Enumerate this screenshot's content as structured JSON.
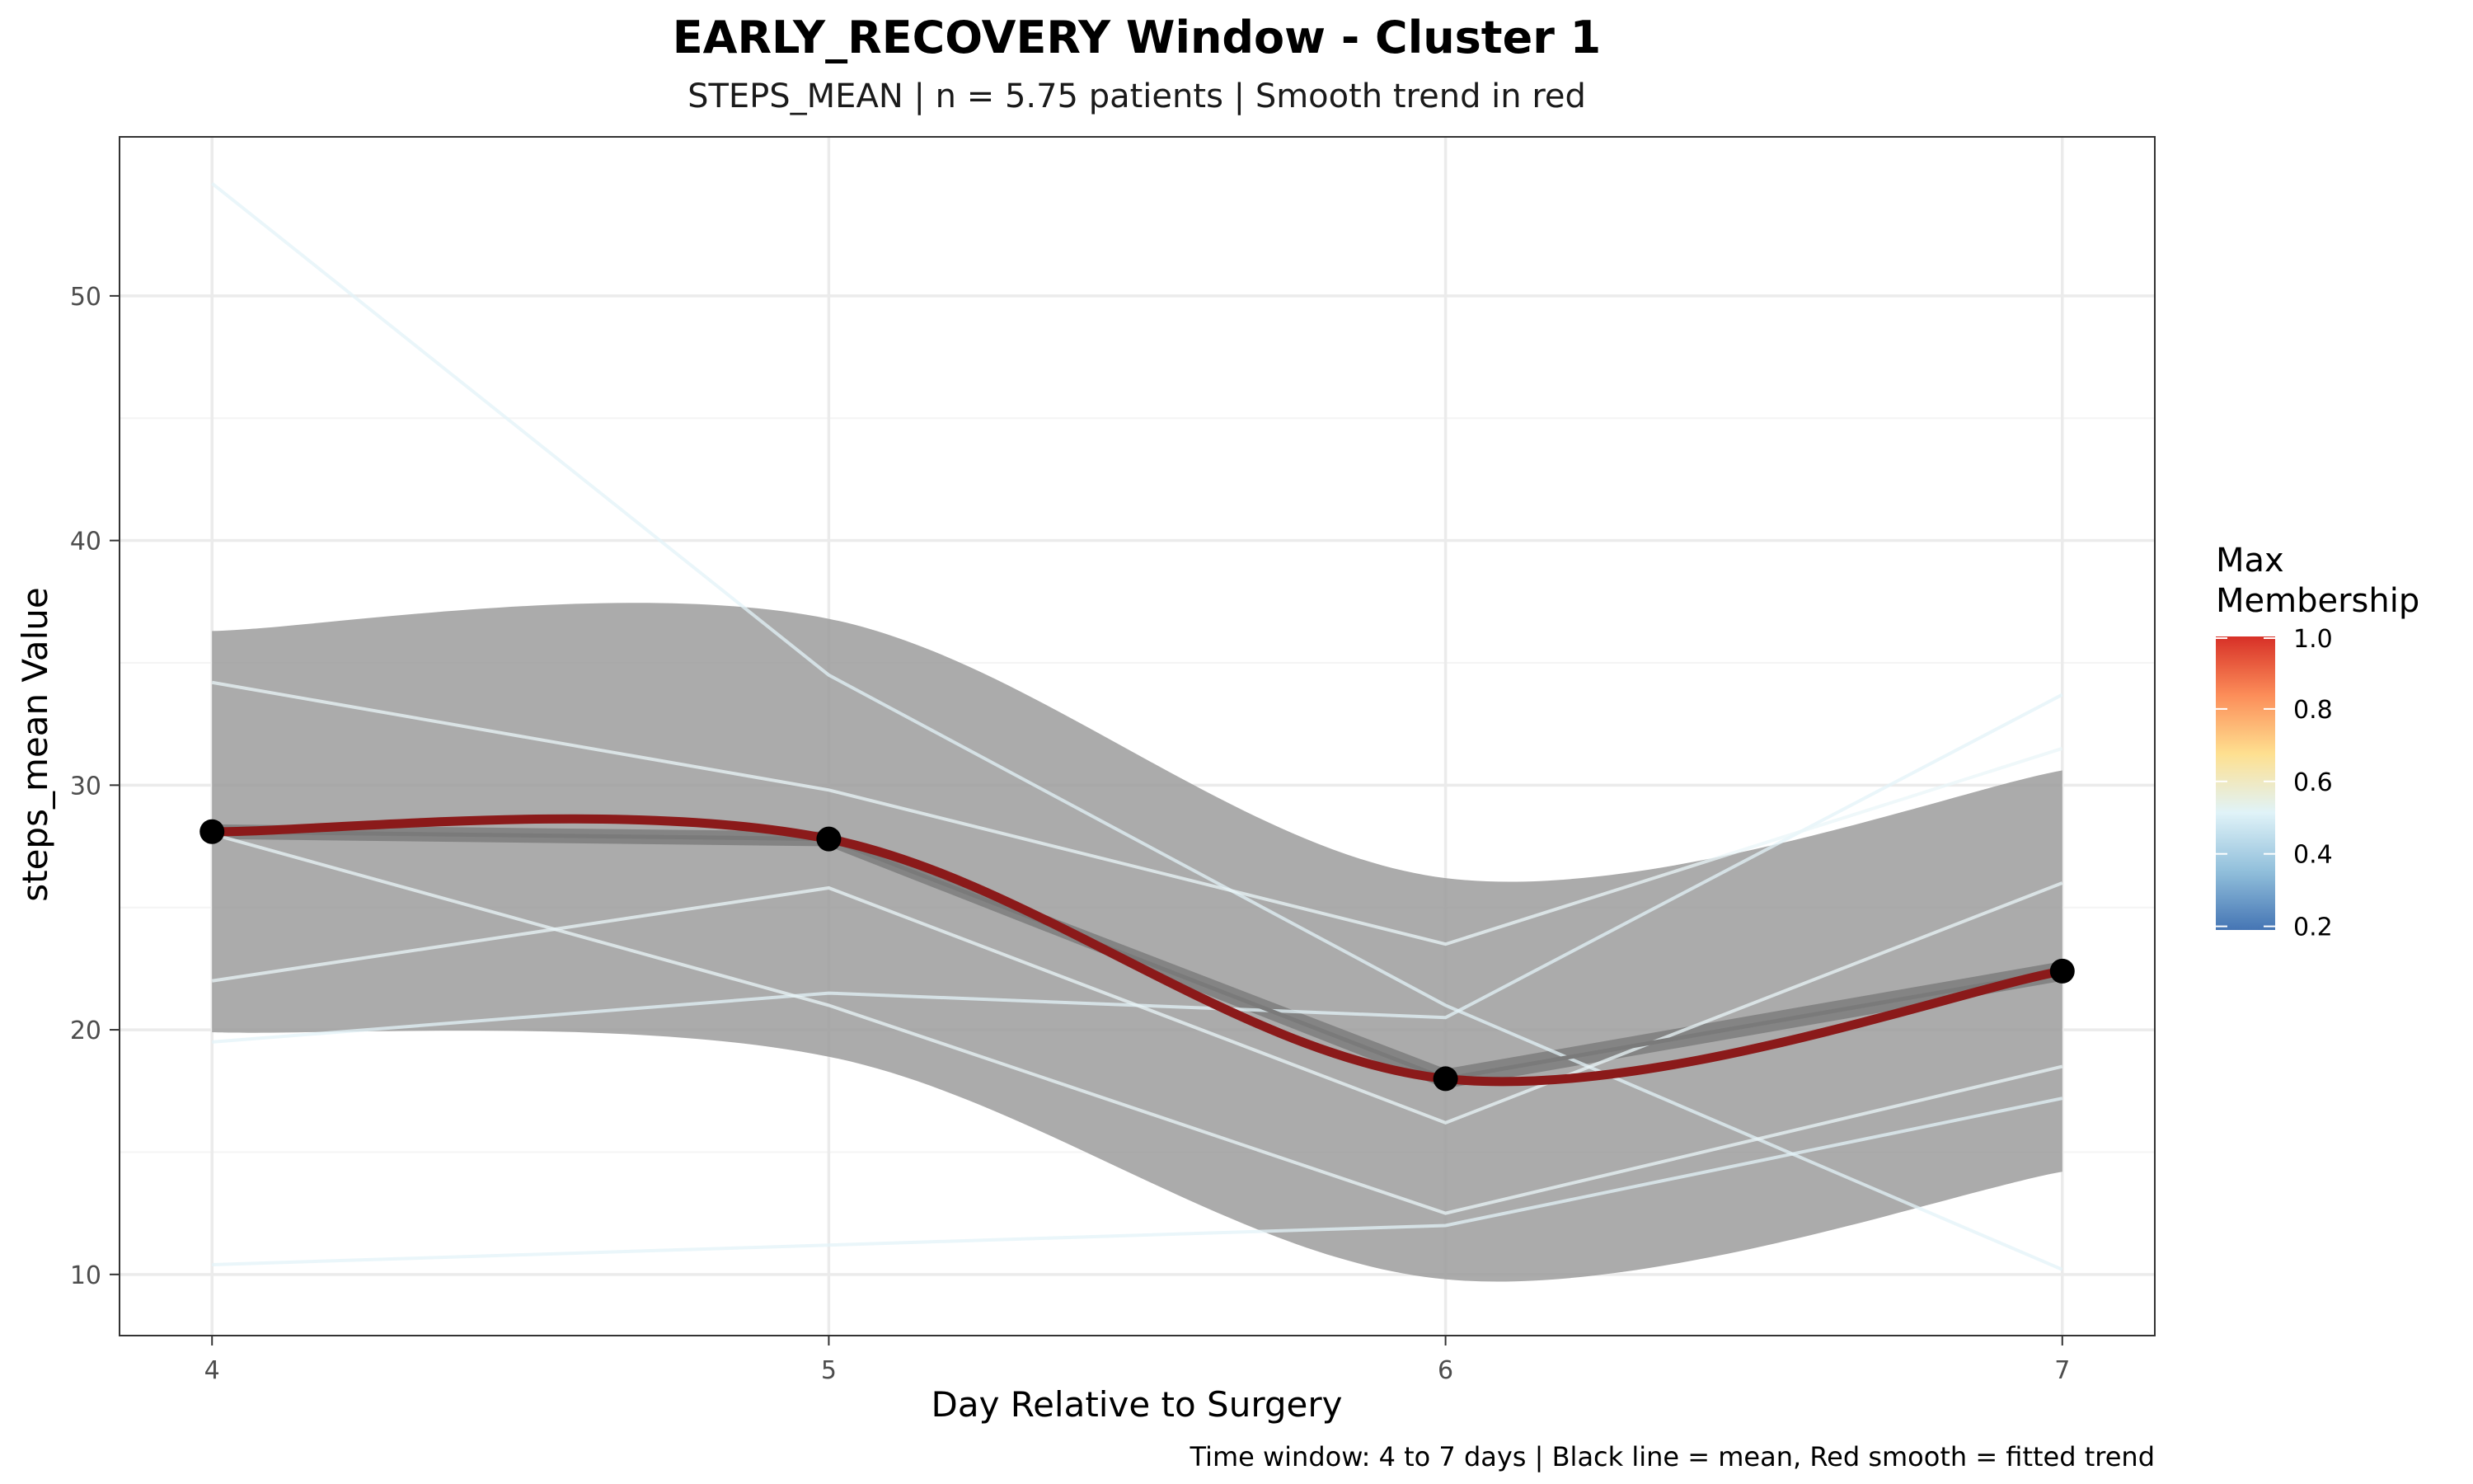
{
  "chart_data": {
    "type": "line",
    "title": "EARLY_RECOVERY Window - Cluster 1",
    "subtitle": "STEPS_MEAN | n = 5.75 patients | Smooth trend in red",
    "xlabel": "Day Relative to Surgery",
    "ylabel": "steps_mean Value",
    "caption": "Time window: 4 to 7 days | Black line = mean, Red smooth = fitted trend",
    "x": [
      4,
      5,
      6,
      7
    ],
    "x_ticks": [
      4,
      5,
      6,
      7
    ],
    "y_ticks": [
      10,
      20,
      30,
      40,
      50
    ],
    "xlim": [
      3.85,
      7.15
    ],
    "ylim": [
      7.5,
      56.5
    ],
    "grid": true,
    "mean": {
      "values": [
        28.1,
        27.8,
        18.0,
        22.4
      ],
      "color": "#000000"
    },
    "smooth_trend": {
      "values": [
        28.1,
        27.8,
        18.0,
        22.4
      ],
      "color": "#8b1a1a"
    },
    "ci_band": {
      "upper": [
        36.3,
        36.8,
        26.2,
        30.6
      ],
      "lower": [
        19.9,
        18.9,
        9.8,
        14.2
      ],
      "color": "#999999"
    },
    "mean_band": {
      "upper": [
        28.4,
        28.1,
        18.4,
        22.8
      ],
      "lower": [
        27.8,
        27.5,
        17.6,
        22.0
      ],
      "color": "#7f7f7f"
    },
    "patient_lines": [
      {
        "values": [
          54.6,
          34.5,
          21.0,
          10.2
        ],
        "color": "#e3f3f8"
      },
      {
        "values": [
          19.5,
          21.5,
          20.5,
          33.7
        ],
        "color": "#e3f3f8"
      },
      {
        "values": [
          10.4,
          11.2,
          12.0,
          17.2
        ],
        "color": "#e3f3f8"
      },
      {
        "values": [
          34.2,
          29.8,
          23.5,
          31.5
        ],
        "color": "#eaf5f8"
      },
      {
        "values": [
          22.0,
          25.8,
          16.2,
          26.0
        ],
        "color": "#eaf5f8"
      },
      {
        "values": [
          28.0,
          21.0,
          12.5,
          18.5
        ],
        "color": "#eaf5f8"
      }
    ],
    "legend": {
      "title_lines": [
        "Max",
        "Membership"
      ],
      "labels": [
        "1.0",
        "0.8",
        "0.6",
        "0.4",
        "0.2"
      ],
      "values": [
        1.0,
        0.8,
        0.6,
        0.4,
        0.2
      ],
      "range": [
        0.19,
        1.0
      ],
      "colors": [
        "#d73027",
        "#fc8d59",
        "#fee090",
        "#e0f3f8",
        "#91bfdb",
        "#4575b4"
      ],
      "position": "right"
    }
  }
}
